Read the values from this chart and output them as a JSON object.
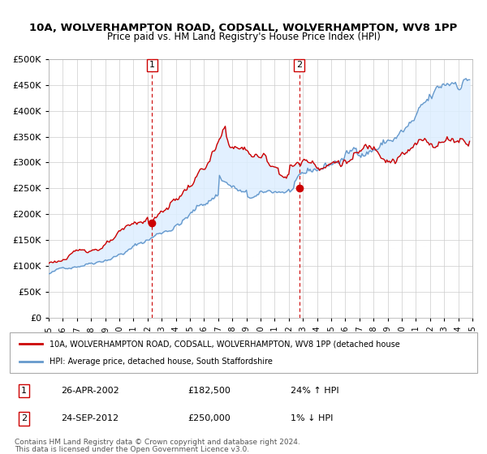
{
  "title": "10A, WOLVERHAMPTON ROAD, CODSALL, WOLVERHAMPTON, WV8 1PP",
  "subtitle": "Price paid vs. HM Land Registry's House Price Index (HPI)",
  "xlim": [
    1995.0,
    2025.0
  ],
  "ylim": [
    0,
    500000
  ],
  "yticks": [
    0,
    50000,
    100000,
    150000,
    200000,
    250000,
    300000,
    350000,
    400000,
    450000,
    500000
  ],
  "xticks": [
    1995,
    1996,
    1997,
    1998,
    1999,
    2000,
    2001,
    2002,
    2003,
    2004,
    2005,
    2006,
    2007,
    2008,
    2009,
    2010,
    2011,
    2012,
    2013,
    2014,
    2015,
    2016,
    2017,
    2018,
    2019,
    2020,
    2021,
    2022,
    2023,
    2024,
    2025
  ],
  "red_color": "#cc0000",
  "blue_color": "#6699cc",
  "fill_color": "#ddeeff",
  "grid_color": "#cccccc",
  "bg_color": "#ffffff",
  "vline_color": "#cc0000",
  "marker1_x": 2002.32,
  "marker1_y": 182500,
  "marker2_x": 2012.73,
  "marker2_y": 250000,
  "legend_line1": "10A, WOLVERHAMPTON ROAD, CODSALL, WOLVERHAMPTON, WV8 1PP (detached house",
  "legend_line2": "HPI: Average price, detached house, South Staffordshire",
  "label1_num": "1",
  "label1_date": "26-APR-2002",
  "label1_price": "£182,500",
  "label1_hpi": "24% ↑ HPI",
  "label2_num": "2",
  "label2_date": "24-SEP-2012",
  "label2_price": "£250,000",
  "label2_hpi": "1% ↓ HPI",
  "footnote1": "Contains HM Land Registry data © Crown copyright and database right 2024.",
  "footnote2": "This data is licensed under the Open Government Licence v3.0."
}
